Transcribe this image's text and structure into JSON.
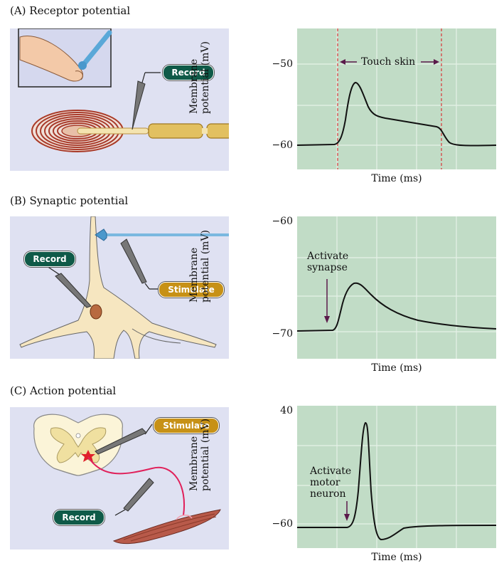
{
  "colors": {
    "plot_bg": "#c1dcc6",
    "illus_bg": "#dfe1f2",
    "record_pill": "#0f5a48",
    "stimulate_pill": "#c79116",
    "trace": "#111111",
    "marker": "#d94040",
    "arrow": "#5a1a4a"
  },
  "panels": [
    {
      "title": "(A)  Receptor potential",
      "record_label": "Record",
      "plot": {
        "ylabel_line1": "Membrane",
        "ylabel_line2": "potential (mV)",
        "xlabel": "Time (ms)",
        "ticks": [
          "−50",
          "−60"
        ],
        "annotation": "Touch skin"
      }
    },
    {
      "title": "(B)  Synaptic potential",
      "record_label": "Record",
      "stimulate_label": "Stimulate",
      "plot": {
        "ylabel_line1": "Membrane",
        "ylabel_line2": "potential (mV)",
        "xlabel": "Time (ms)",
        "ticks": [
          "−60",
          "−70"
        ],
        "annotation_line1": "Activate",
        "annotation_line2": "synapse"
      }
    },
    {
      "title": "(C)  Action potential",
      "record_label": "Record",
      "stimulate_label": "Stimulate",
      "plot": {
        "ylabel_line1": "Membrane",
        "ylabel_line2": "potential (mV)",
        "xlabel": "Time (ms)",
        "ticks": [
          "40",
          "−60"
        ],
        "annotation_line1": "Activate",
        "annotation_line2": "motor",
        "annotation_line3": "neuron"
      }
    }
  ],
  "icons": [
    "finger-icon",
    "probe-icon",
    "pacinian-corpuscle-icon",
    "neuron-icon",
    "spinal-cord-icon",
    "muscle-icon"
  ]
}
